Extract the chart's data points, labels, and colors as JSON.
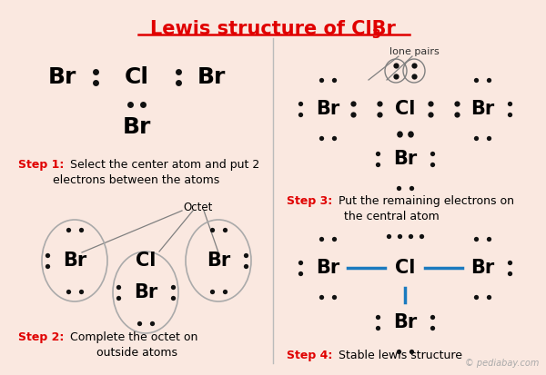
{
  "background_color": "#fae8e0",
  "red_color": "#e00000",
  "blue_color": "#1a7abf",
  "black_color": "#111111",
  "watermark": "© pediabay.com",
  "title": "Lewis structure of ClBr",
  "title_sub": "3"
}
